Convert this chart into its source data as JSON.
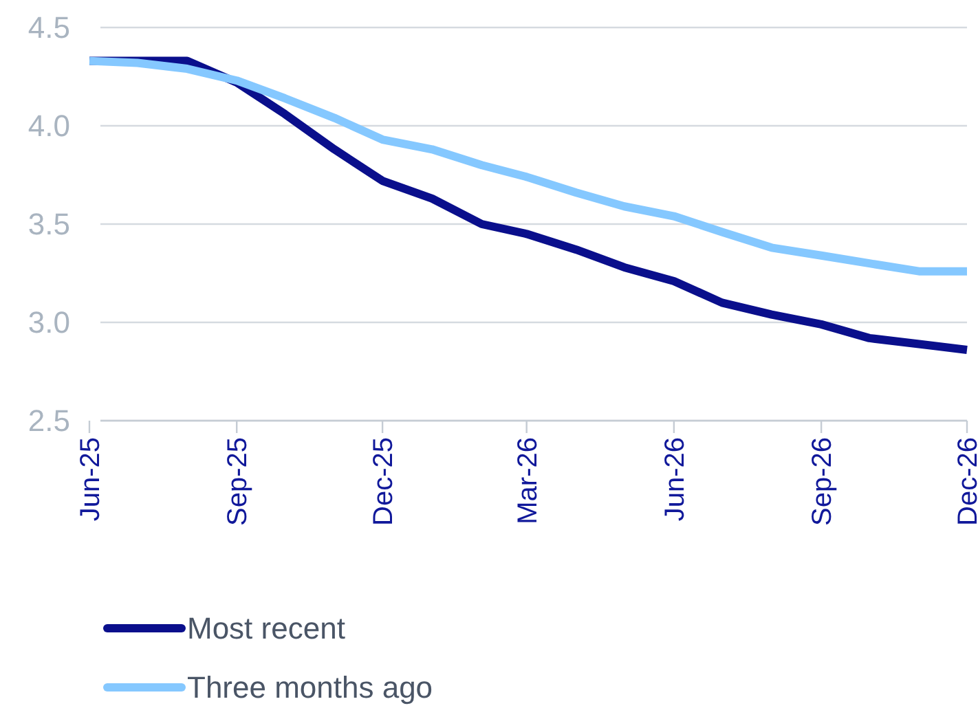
{
  "chart_data": {
    "type": "line",
    "x": [
      "2025-06",
      "2025-07",
      "2025-08",
      "2025-09",
      "2025-10",
      "2025-11",
      "2025-12",
      "2026-01",
      "2026-02",
      "2026-03",
      "2026-04",
      "2026-05",
      "2026-06",
      "2026-07",
      "2026-08",
      "2026-09",
      "2026-10",
      "2026-11",
      "2026-12"
    ],
    "series": [
      {
        "name": "Most recent",
        "color": "#0a0f8c",
        "values": [
          4.33,
          4.33,
          4.33,
          4.22,
          4.06,
          3.88,
          3.72,
          3.63,
          3.5,
          3.45,
          3.37,
          3.28,
          3.21,
          3.1,
          3.04,
          2.99,
          2.92,
          2.89,
          2.86
        ]
      },
      {
        "name": "Three months ago",
        "color": "#85c8ff",
        "values": [
          4.33,
          4.32,
          4.29,
          4.23,
          4.14,
          4.04,
          3.93,
          3.88,
          3.8,
          3.74,
          3.66,
          3.59,
          3.54,
          3.46,
          3.38,
          3.34,
          3.3,
          3.26,
          3.26
        ]
      }
    ],
    "xlim": [
      "2025-06",
      "2026-12"
    ],
    "xticks": [
      {
        "value": "2025-06",
        "label": "Jun-25"
      },
      {
        "value": "2025-09",
        "label": "Sep-25"
      },
      {
        "value": "2025-12",
        "label": "Dec-25"
      },
      {
        "value": "2026-03",
        "label": "Mar-26"
      },
      {
        "value": "2026-06",
        "label": "Jun-26"
      },
      {
        "value": "2026-09",
        "label": "Sep-26"
      },
      {
        "value": "2026-12",
        "label": "Dec-26"
      }
    ],
    "ylim": [
      2.5,
      4.5
    ],
    "yticks": [
      {
        "value": 2.5,
        "label": "2.5"
      },
      {
        "value": 3.0,
        "label": "3.0"
      },
      {
        "value": 3.5,
        "label": "3.5"
      },
      {
        "value": 4.0,
        "label": "4.0"
      },
      {
        "value": 4.5,
        "label": "4.5"
      }
    ],
    "grid": "y",
    "legend": "bottom",
    "marker": "none",
    "line_style": "solid"
  }
}
